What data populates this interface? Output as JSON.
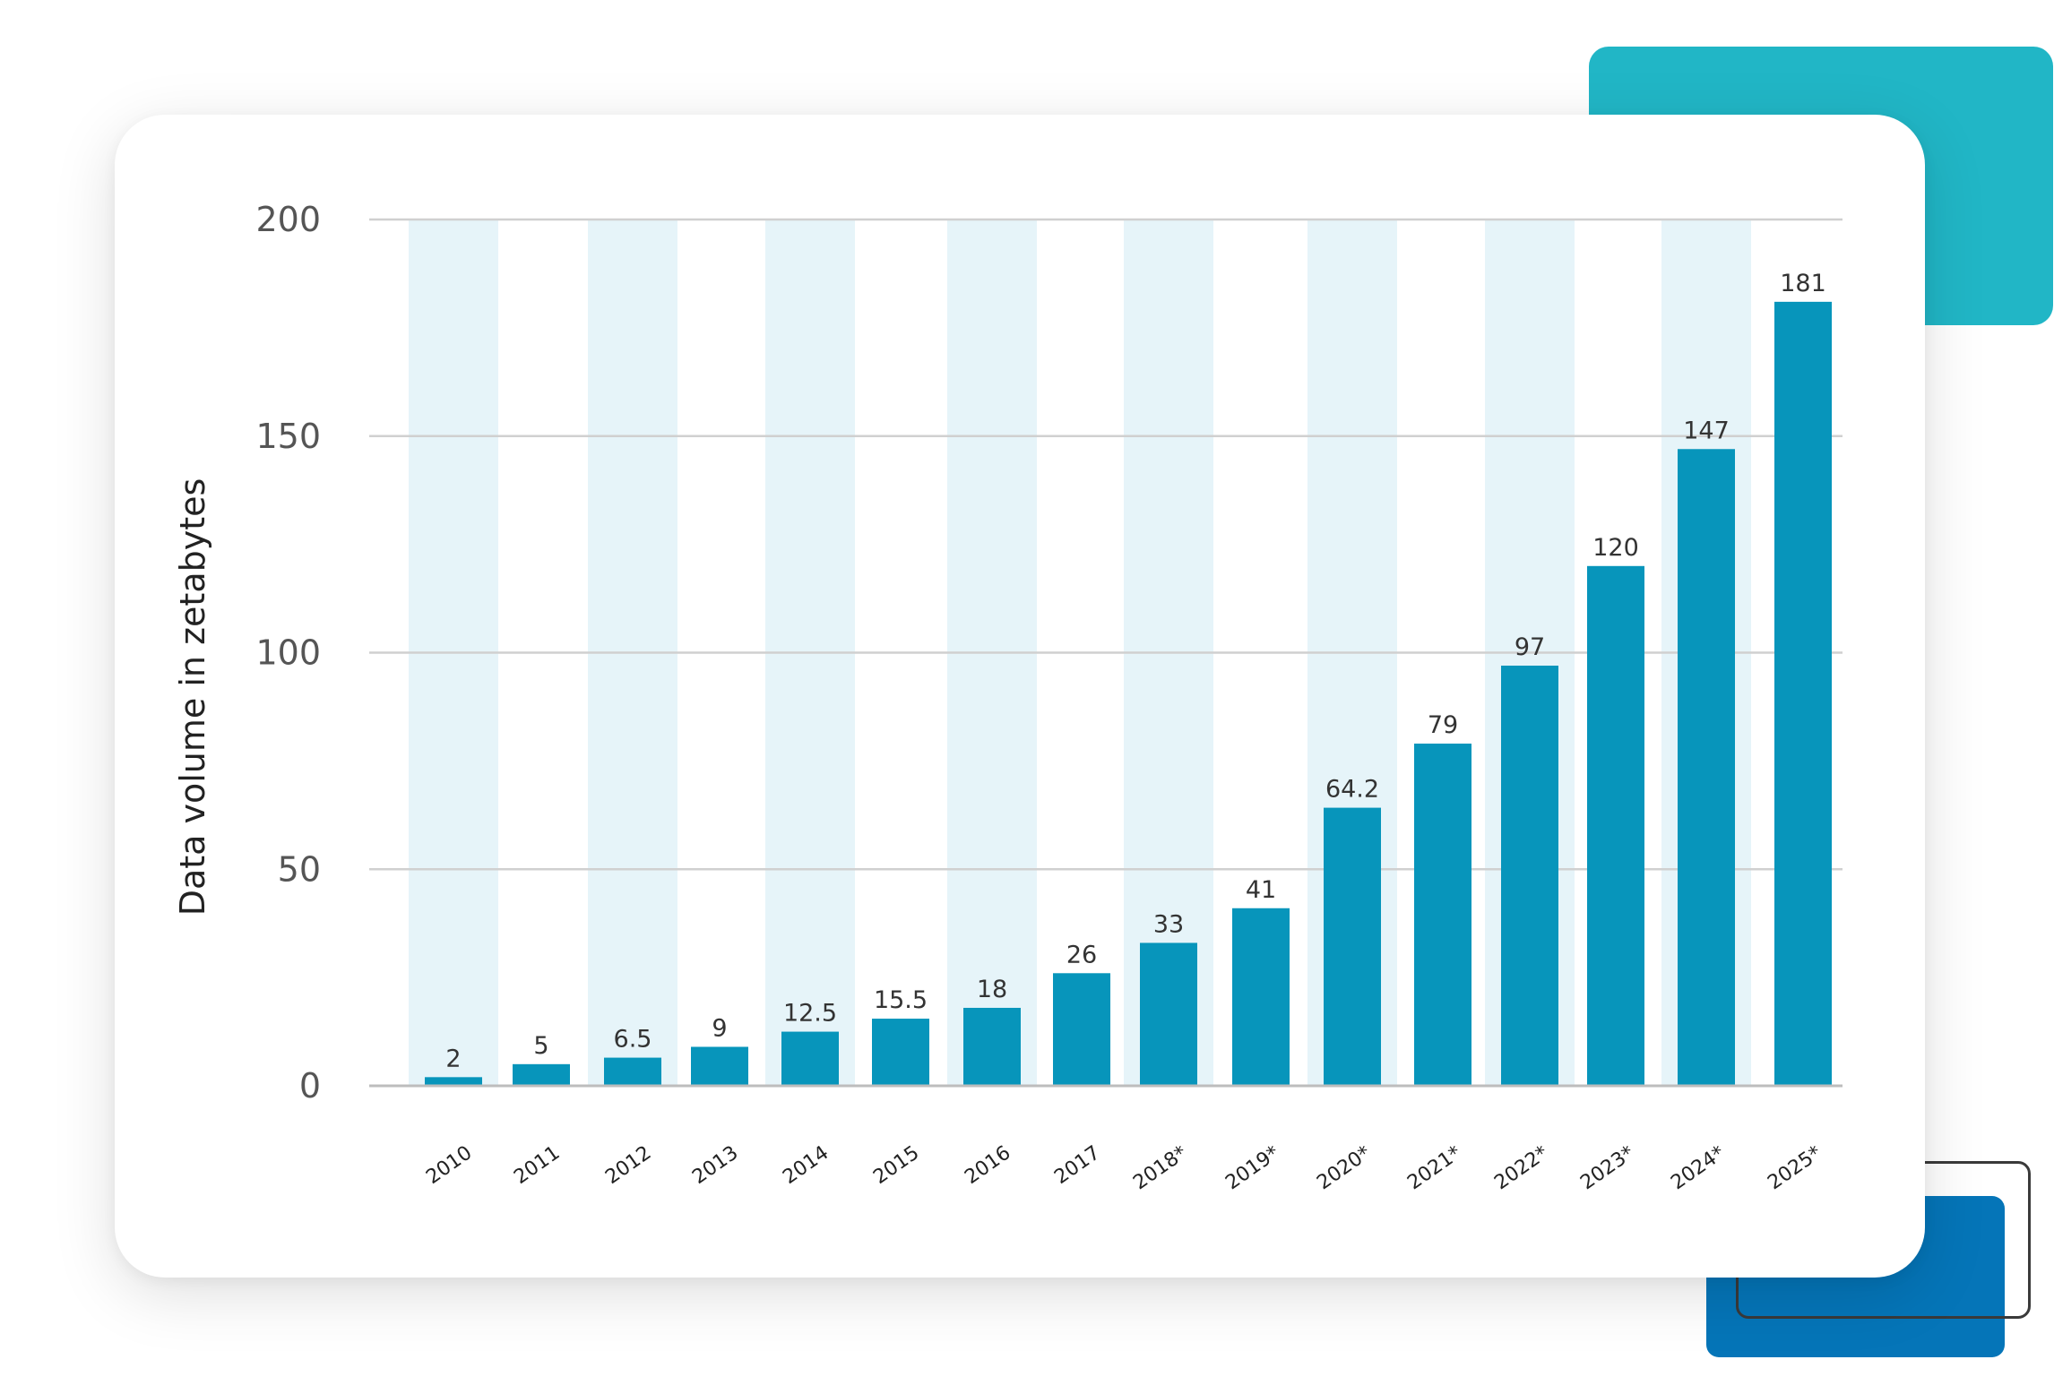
{
  "chart_data": {
    "type": "bar",
    "title": "",
    "xlabel": "",
    "ylabel": "Data volume in zetabytes",
    "ylim": [
      0,
      200
    ],
    "yticks": [
      0,
      50,
      100,
      150,
      200
    ],
    "grid": "horizontal",
    "legend": "none",
    "categories": [
      "2010",
      "2011",
      "2012",
      "2013",
      "2014",
      "2015",
      "2016",
      "2017",
      "2018*",
      "2019*",
      "2020*",
      "2021*",
      "2022*",
      "2023*",
      "2024*",
      "2025*"
    ],
    "series": [
      {
        "values": [
          2,
          5,
          6.5,
          9,
          12.5,
          15.5,
          18,
          26,
          33,
          41,
          64.2,
          79,
          97,
          120,
          147,
          181
        ],
        "labels": [
          "2",
          "5",
          "6.5",
          "9",
          "12.5",
          "15.5",
          "18",
          "26",
          "33",
          "41",
          "64.2",
          "79",
          "97",
          "120",
          "147",
          "181"
        ]
      }
    ],
    "colors": {
      "bar": "#0795bb",
      "band": "#e6f4f9",
      "grid": "#d0d0d0",
      "axis": "#bdbdbd"
    }
  }
}
